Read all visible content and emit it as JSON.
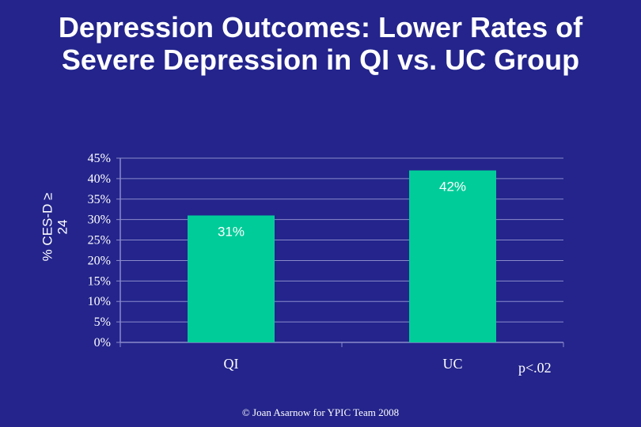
{
  "slide": {
    "title": "Depression Outcomes: Lower Rates of Severe Depression in QI vs. UC Group",
    "footer": "© Joan Asarnow for YPIC Team 2008",
    "p_note": "p<.02",
    "background_color": "#24248c"
  },
  "chart_data": {
    "type": "bar",
    "categories": [
      "QI",
      "UC"
    ],
    "values": [
      31,
      42
    ],
    "data_labels": [
      "31%",
      "42%"
    ],
    "ylabel_lines": [
      "% CES-D ≥",
      "24"
    ],
    "ylim": [
      0,
      45
    ],
    "ytick_values": [
      0,
      5,
      10,
      15,
      20,
      25,
      30,
      35,
      40,
      45
    ],
    "ytick_labels": [
      "0%",
      "5%",
      "10%",
      "15%",
      "20%",
      "25%",
      "30%",
      "35%",
      "40%",
      "45%"
    ],
    "grid": true,
    "bar_color": "#00cc99",
    "grid_color": "#8a8acb"
  }
}
